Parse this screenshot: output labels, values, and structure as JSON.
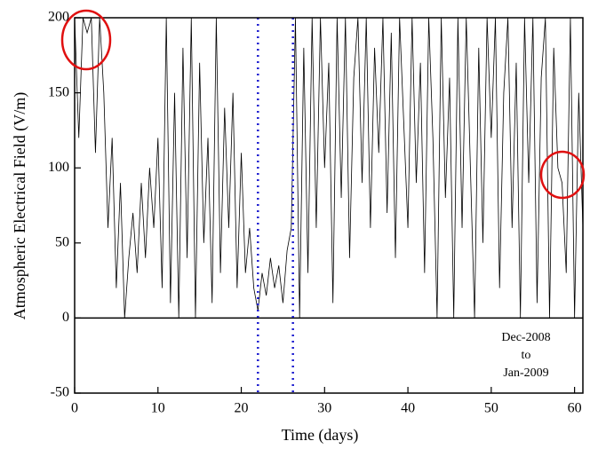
{
  "chart_data": {
    "type": "line",
    "x_label": "Time (days)",
    "y_label": "Atmospheric Electrical Field (V/m)",
    "annotation": [
      "Dec-2008",
      "to",
      "Jan-2009"
    ],
    "xlim": [
      0,
      61
    ],
    "xticks": [
      0,
      10,
      20,
      30,
      40,
      50,
      60
    ],
    "ylim": [
      -50,
      200
    ],
    "yticks": [
      -50,
      0,
      50,
      100,
      150,
      200
    ],
    "vlines": [
      22,
      26.2
    ],
    "vline_color": "#1f1fd0",
    "x": [
      0,
      0.5,
      1,
      1.5,
      2,
      2.5,
      3,
      3.5,
      4,
      4.5,
      5,
      5.5,
      6,
      6.5,
      7,
      7.5,
      8,
      8.5,
      9,
      9.5,
      10,
      10.5,
      11,
      11.5,
      12,
      12.5,
      13,
      13.5,
      14,
      14.5,
      15,
      15.5,
      16,
      16.5,
      17,
      17.5,
      18,
      18.5,
      19,
      19.5,
      20,
      20.5,
      21,
      21.5,
      22,
      22.5,
      23,
      23.5,
      24,
      24.5,
      25,
      25.5,
      26,
      26.5,
      27,
      27.5,
      28,
      28.5,
      29,
      29.5,
      30,
      30.5,
      31,
      31.5,
      32,
      32.5,
      33,
      33.5,
      34,
      34.5,
      35,
      35.5,
      36,
      36.5,
      37,
      37.5,
      38,
      38.5,
      39,
      39.5,
      40,
      40.5,
      41,
      41.5,
      42,
      42.5,
      43,
      43.5,
      44,
      44.5,
      45,
      45.5,
      46,
      46.5,
      47,
      47.5,
      48,
      48.5,
      49,
      49.5,
      50,
      50.5,
      51,
      51.5,
      52,
      52.5,
      53,
      53.5,
      54,
      54.5,
      55,
      55.5,
      56,
      56.5,
      57,
      57.5,
      58,
      58.5,
      59,
      59.5,
      60,
      60.5,
      61
    ],
    "series": [
      {
        "color": "#000000",
        "values": [
          200,
          120,
          200,
          190,
          200,
          110,
          200,
          150,
          60,
          120,
          20,
          90,
          0,
          40,
          70,
          30,
          90,
          40,
          100,
          60,
          120,
          20,
          200,
          10,
          150,
          0,
          180,
          40,
          200,
          0,
          170,
          50,
          120,
          10,
          200,
          30,
          140,
          60,
          150,
          20,
          110,
          30,
          60,
          20,
          5,
          30,
          15,
          40,
          20,
          35,
          10,
          45,
          60,
          200,
          0,
          180,
          30,
          200,
          60,
          200,
          100,
          170,
          10,
          200,
          80,
          200,
          40,
          160,
          200,
          90,
          200,
          60,
          180,
          110,
          200,
          70,
          190,
          40,
          200,
          130,
          60,
          200,
          90,
          170,
          30,
          200,
          120,
          0,
          200,
          80,
          160,
          0,
          200,
          60,
          200,
          100,
          0,
          180,
          50,
          200,
          120,
          200,
          20,
          150,
          200,
          60,
          170,
          0,
          200,
          90,
          200,
          10,
          160,
          200,
          0,
          180,
          100,
          90,
          30,
          200,
          0,
          150,
          60
        ]
      }
    ]
  }
}
